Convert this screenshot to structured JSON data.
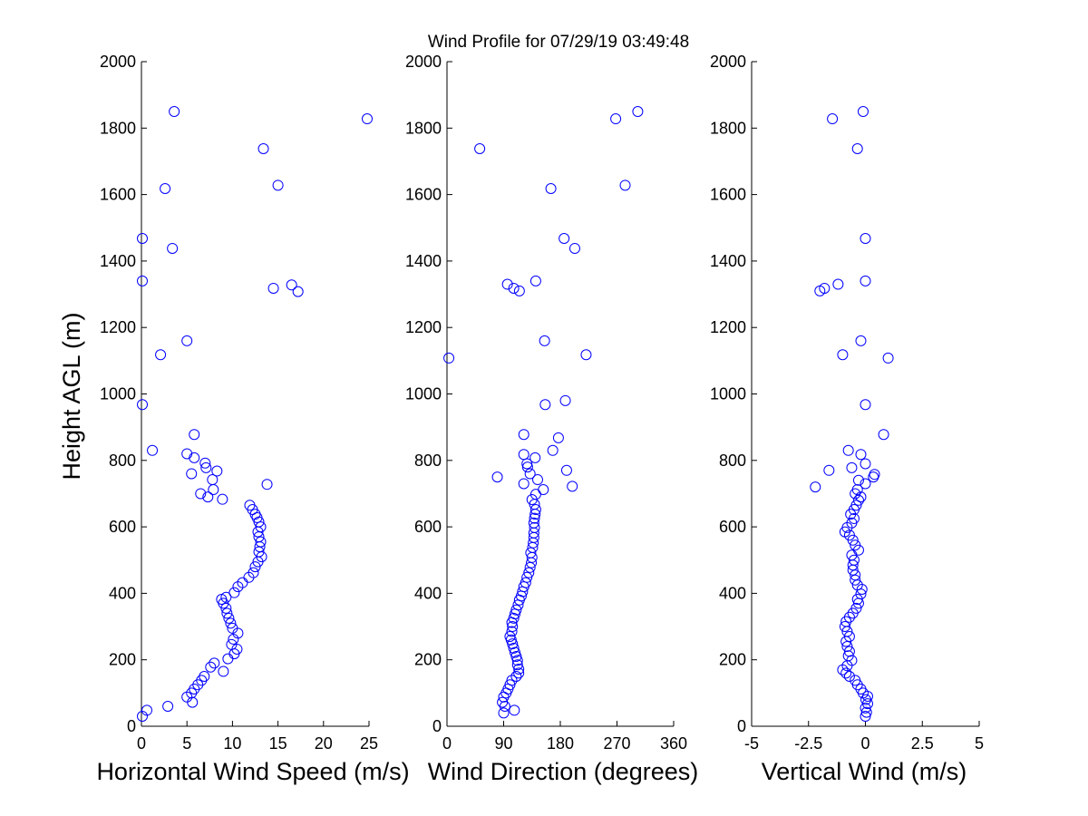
{
  "chart_data": {
    "title": "Wind Profile for  07/29/19 03:49:48",
    "colors": {
      "marker": "#0000ff",
      "axis": "#000000",
      "background": "#ffffff"
    },
    "panels": [
      {
        "id": "speed",
        "type": "scatter",
        "xlabel": "Horizontal Wind Speed (m/s)",
        "ylabel": "Height AGL (m)",
        "xlim": [
          0,
          25
        ],
        "ylim": [
          0,
          2000
        ],
        "xticks": [
          0,
          5,
          10,
          15,
          20,
          25
        ],
        "xtick_labels": [
          "0",
          "5",
          "10",
          "15",
          "20",
          "25"
        ],
        "yticks": [
          0,
          200,
          400,
          600,
          800,
          1000,
          1200,
          1400,
          1600,
          1800,
          2000
        ],
        "ytick_labels": [
          "0",
          "200",
          "400",
          "600",
          "800",
          "1000",
          "1200",
          "1400",
          "1600",
          "1800",
          "2000"
        ],
        "points": [
          [
            0.1,
            30
          ],
          [
            0.6,
            48
          ],
          [
            2.9,
            60
          ],
          [
            5.6,
            72
          ],
          [
            5.0,
            88
          ],
          [
            5.5,
            100
          ],
          [
            5.8,
            112
          ],
          [
            6.2,
            125
          ],
          [
            6.6,
            138
          ],
          [
            6.9,
            150
          ],
          [
            9.0,
            165
          ],
          [
            7.6,
            178
          ],
          [
            8.0,
            190
          ],
          [
            9.5,
            203
          ],
          [
            10.2,
            218
          ],
          [
            10.5,
            232
          ],
          [
            9.9,
            246
          ],
          [
            10.1,
            262
          ],
          [
            10.6,
            280
          ],
          [
            10.0,
            295
          ],
          [
            9.8,
            310
          ],
          [
            9.6,
            325
          ],
          [
            9.4,
            340
          ],
          [
            9.3,
            355
          ],
          [
            9.0,
            370
          ],
          [
            8.8,
            382
          ],
          [
            9.3,
            388
          ],
          [
            10.2,
            402
          ],
          [
            10.6,
            420
          ],
          [
            11.1,
            432
          ],
          [
            11.8,
            448
          ],
          [
            12.3,
            462
          ],
          [
            12.5,
            480
          ],
          [
            12.8,
            495
          ],
          [
            13.2,
            510
          ],
          [
            12.9,
            525
          ],
          [
            13.0,
            540
          ],
          [
            13.1,
            555
          ],
          [
            12.9,
            570
          ],
          [
            12.8,
            585
          ],
          [
            13.1,
            600
          ],
          [
            12.9,
            615
          ],
          [
            12.7,
            628
          ],
          [
            12.5,
            638
          ],
          [
            12.2,
            652
          ],
          [
            11.9,
            665
          ],
          [
            8.9,
            683
          ],
          [
            7.3,
            690
          ],
          [
            6.5,
            700
          ],
          [
            7.9,
            712
          ],
          [
            13.8,
            728
          ],
          [
            7.8,
            742
          ],
          [
            8.3,
            768
          ],
          [
            7.1,
            778
          ],
          [
            7.0,
            792
          ],
          [
            5.8,
            808
          ],
          [
            5.0,
            820
          ],
          [
            1.2,
            830
          ],
          [
            5.8,
            878
          ],
          [
            0.1,
            968
          ],
          [
            2.1,
            1118
          ],
          [
            5.0,
            1160
          ],
          [
            17.2,
            1308
          ],
          [
            14.5,
            1318
          ],
          [
            16.5,
            1328
          ],
          [
            0.1,
            1340
          ],
          [
            3.4,
            1438
          ],
          [
            0.1,
            1468
          ],
          [
            2.6,
            1618
          ],
          [
            15.0,
            1628
          ],
          [
            13.4,
            1738
          ],
          [
            24.8,
            1828
          ],
          [
            3.6,
            1850
          ],
          [
            5.5,
            760
          ]
        ]
      },
      {
        "id": "direction",
        "type": "scatter",
        "xlabel": "Wind Direction (degrees)",
        "ylabel": "",
        "xlim": [
          0,
          360
        ],
        "ylim": [
          0,
          2000
        ],
        "xticks": [
          0,
          90,
          180,
          270,
          360
        ],
        "xtick_labels": [
          "0",
          "90",
          "180",
          "270",
          "360"
        ],
        "yticks": [
          0,
          200,
          400,
          600,
          800,
          1000,
          1200,
          1400,
          1600,
          1800,
          2000
        ],
        "ytick_labels": [
          "0",
          "200",
          "400",
          "600",
          "800",
          "1000",
          "1200",
          "1400",
          "1600",
          "1800",
          "2000"
        ],
        "points": [
          [
            90,
            40
          ],
          [
            107,
            48
          ],
          [
            92,
            60
          ],
          [
            88,
            72
          ],
          [
            90,
            88
          ],
          [
            94,
            100
          ],
          [
            97,
            112
          ],
          [
            100,
            125
          ],
          [
            103,
            138
          ],
          [
            110,
            150
          ],
          [
            114,
            160
          ],
          [
            114,
            172
          ],
          [
            112,
            185
          ],
          [
            112,
            198
          ],
          [
            110,
            210
          ],
          [
            108,
            222
          ],
          [
            106,
            235
          ],
          [
            104,
            248
          ],
          [
            102,
            260
          ],
          [
            100,
            270
          ],
          [
            103,
            285
          ],
          [
            104,
            300
          ],
          [
            103,
            312
          ],
          [
            106,
            325
          ],
          [
            108,
            338
          ],
          [
            110,
            350
          ],
          [
            113,
            365
          ],
          [
            115,
            380
          ],
          [
            118,
            392
          ],
          [
            120,
            405
          ],
          [
            122,
            420
          ],
          [
            125,
            432
          ],
          [
            127,
            448
          ],
          [
            130,
            462
          ],
          [
            132,
            478
          ],
          [
            134,
            492
          ],
          [
            135,
            508
          ],
          [
            133,
            522
          ],
          [
            136,
            538
          ],
          [
            137,
            552
          ],
          [
            138,
            568
          ],
          [
            138,
            582
          ],
          [
            139,
            598
          ],
          [
            138,
            612
          ],
          [
            139,
            626
          ],
          [
            140,
            638
          ],
          [
            141,
            652
          ],
          [
            139,
            668
          ],
          [
            135,
            682
          ],
          [
            141,
            698
          ],
          [
            153,
            712
          ],
          [
            199,
            722
          ],
          [
            122,
            730
          ],
          [
            144,
            742
          ],
          [
            80,
            750
          ],
          [
            132,
            760
          ],
          [
            190,
            770
          ],
          [
            128,
            780
          ],
          [
            127,
            790
          ],
          [
            140,
            808
          ],
          [
            122,
            818
          ],
          [
            168,
            830
          ],
          [
            177,
            868
          ],
          [
            122,
            878
          ],
          [
            156,
            968
          ],
          [
            188,
            980
          ],
          [
            3,
            1108
          ],
          [
            221,
            1118
          ],
          [
            155,
            1160
          ],
          [
            115,
            1310
          ],
          [
            106,
            1318
          ],
          [
            96,
            1330
          ],
          [
            141,
            1340
          ],
          [
            186,
            1468
          ],
          [
            203,
            1438
          ],
          [
            165,
            1618
          ],
          [
            283,
            1628
          ],
          [
            52,
            1738
          ],
          [
            268,
            1828
          ],
          [
            303,
            1850
          ]
        ]
      },
      {
        "id": "vertical",
        "type": "scatter",
        "xlabel": "Vertical Wind (m/s)",
        "ylabel": "",
        "xlim": [
          -5,
          5
        ],
        "ylim": [
          0,
          2000
        ],
        "xticks": [
          -5,
          -2.5,
          0,
          2.5,
          5
        ],
        "xtick_labels": [
          "-5",
          "-2.5",
          "0",
          "2.5",
          "5"
        ],
        "yticks": [
          0,
          200,
          400,
          600,
          800,
          1000,
          1200,
          1400,
          1600,
          1800,
          2000
        ],
        "ytick_labels": [
          "0",
          "200",
          "400",
          "600",
          "800",
          "1000",
          "1200",
          "1400",
          "1600",
          "1800",
          "2000"
        ],
        "points": [
          [
            0.0,
            30
          ],
          [
            0.05,
            42
          ],
          [
            0.0,
            55
          ],
          [
            0.1,
            68
          ],
          [
            0.02,
            80
          ],
          [
            0.1,
            90
          ],
          [
            -0.1,
            100
          ],
          [
            -0.2,
            112
          ],
          [
            -0.35,
            125
          ],
          [
            -0.45,
            138
          ],
          [
            -0.7,
            150
          ],
          [
            -0.85,
            160
          ],
          [
            -1.0,
            170
          ],
          [
            -0.8,
            182
          ],
          [
            -0.6,
            198
          ],
          [
            -0.75,
            212
          ],
          [
            -0.7,
            225
          ],
          [
            -0.8,
            240
          ],
          [
            -0.85,
            255
          ],
          [
            -0.7,
            270
          ],
          [
            -0.8,
            285
          ],
          [
            -0.9,
            300
          ],
          [
            -0.85,
            315
          ],
          [
            -0.7,
            328
          ],
          [
            -0.55,
            340
          ],
          [
            -0.4,
            355
          ],
          [
            -0.3,
            370
          ],
          [
            -0.35,
            382
          ],
          [
            -0.2,
            398
          ],
          [
            -0.15,
            412
          ],
          [
            -0.35,
            425
          ],
          [
            -0.45,
            440
          ],
          [
            -0.45,
            455
          ],
          [
            -0.55,
            470
          ],
          [
            -0.55,
            485
          ],
          [
            -0.5,
            500
          ],
          [
            -0.6,
            515
          ],
          [
            -0.3,
            530
          ],
          [
            -0.45,
            545
          ],
          [
            -0.55,
            560
          ],
          [
            -0.7,
            575
          ],
          [
            -0.9,
            585
          ],
          [
            -0.8,
            598
          ],
          [
            -0.6,
            612
          ],
          [
            -0.5,
            625
          ],
          [
            -0.65,
            638
          ],
          [
            -0.5,
            652
          ],
          [
            -0.4,
            665
          ],
          [
            -0.3,
            680
          ],
          [
            -0.2,
            690
          ],
          [
            -0.45,
            700
          ],
          [
            -0.35,
            712
          ],
          [
            -2.2,
            720
          ],
          [
            0.0,
            730
          ],
          [
            -0.3,
            740
          ],
          [
            0.35,
            750
          ],
          [
            0.4,
            758
          ],
          [
            -1.6,
            770
          ],
          [
            -0.6,
            778
          ],
          [
            0.0,
            790
          ],
          [
            -0.2,
            818
          ],
          [
            -0.75,
            830
          ],
          [
            0.8,
            878
          ],
          [
            0.0,
            968
          ],
          [
            1.0,
            1108
          ],
          [
            -1.0,
            1118
          ],
          [
            -0.2,
            1160
          ],
          [
            -2.0,
            1310
          ],
          [
            -1.8,
            1318
          ],
          [
            -1.2,
            1330
          ],
          [
            0.0,
            1340
          ],
          [
            0.0,
            1468
          ],
          [
            -1.45,
            1828
          ],
          [
            -0.1,
            1850
          ],
          [
            -0.35,
            1738
          ]
        ]
      }
    ]
  }
}
